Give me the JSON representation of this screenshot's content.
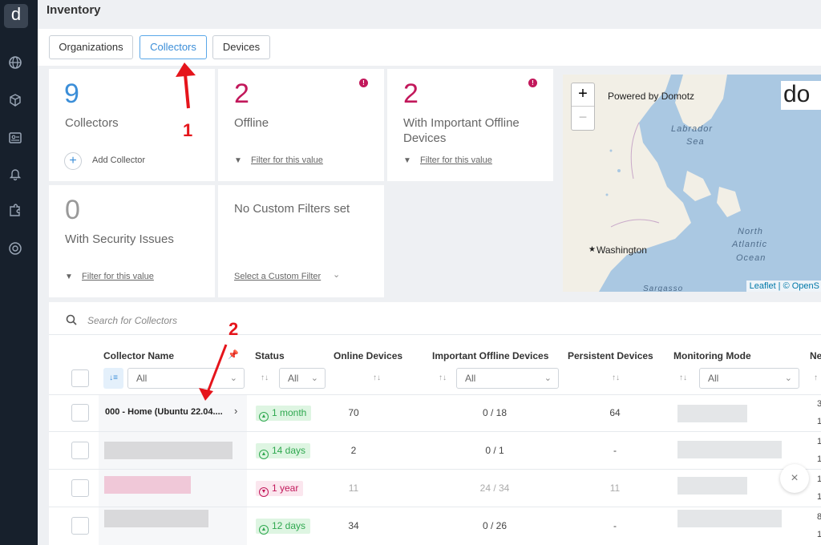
{
  "app": {
    "logo_letter": "d",
    "page_title": "Inventory"
  },
  "sidebar": {
    "icons": [
      "globe-icon",
      "cubes-icon",
      "id-card-icon",
      "bell-icon",
      "puzzle-icon",
      "support-icon"
    ]
  },
  "tabs": [
    {
      "label": "Organizations",
      "active": false
    },
    {
      "label": "Collectors",
      "active": true
    },
    {
      "label": "Devices",
      "active": false
    }
  ],
  "cards": {
    "collectors": {
      "value": "9",
      "label": "Collectors",
      "action": "Add Collector",
      "color": "#3b8ed8"
    },
    "offline": {
      "value": "2",
      "label": "Offline",
      "action": "Filter for this value",
      "color": "#c2185b"
    },
    "important_offline": {
      "value": "2",
      "label": "With Important Offline Devices",
      "action": "Filter for this value",
      "color": "#c2185b"
    },
    "security": {
      "value": "0",
      "label": "With Security Issues",
      "action": "Filter for this value",
      "color": "#999999"
    },
    "custom": {
      "label": "No Custom Filters set",
      "action": "Select a Custom Filter"
    }
  },
  "map": {
    "zoom_in": "+",
    "zoom_out": "−",
    "powered_by": "Powered by Domotz",
    "brand_fragment": "do",
    "labels": {
      "labrador": "Labrador",
      "sea": "Sea",
      "north": "North",
      "atlantic": "Atlantic",
      "ocean": "Ocean",
      "washington": "Washington",
      "sargasso": "Sargasso"
    },
    "attribution": "Leaflet | © OpenS"
  },
  "table": {
    "search_placeholder": "Search for Collectors",
    "columns": {
      "name": "Collector Name",
      "status": "Status",
      "online": "Online Devices",
      "important_offline": "Important Offline Devices",
      "persistent": "Persistent Devices",
      "monitoring": "Monitoring Mode",
      "next": "Ne"
    },
    "filter_all": "All",
    "rows": [
      {
        "name": "000 - Home (Ubuntu 22.04....",
        "status": "1 month",
        "status_kind": "ok",
        "online": "70",
        "important_offline": "0 / 18",
        "persistent": "64",
        "edge": [
          "3",
          "1"
        ]
      },
      {
        "name": "",
        "status": "14 days",
        "status_kind": "ok",
        "online": "2",
        "important_offline": "0 / 1",
        "persistent": "-",
        "edge": [
          "1",
          "1"
        ]
      },
      {
        "name": "",
        "status": "1 year",
        "status_kind": "bad",
        "online": "11",
        "important_offline": "24 / 34",
        "persistent": "11",
        "edge": [
          "1",
          "1"
        ]
      },
      {
        "name": "",
        "status": "12 days",
        "status_kind": "ok",
        "online": "34",
        "important_offline": "0 / 26",
        "persistent": "-",
        "edge": [
          "8",
          "1"
        ]
      }
    ]
  },
  "annotations": {
    "first": "1",
    "second": "2"
  }
}
